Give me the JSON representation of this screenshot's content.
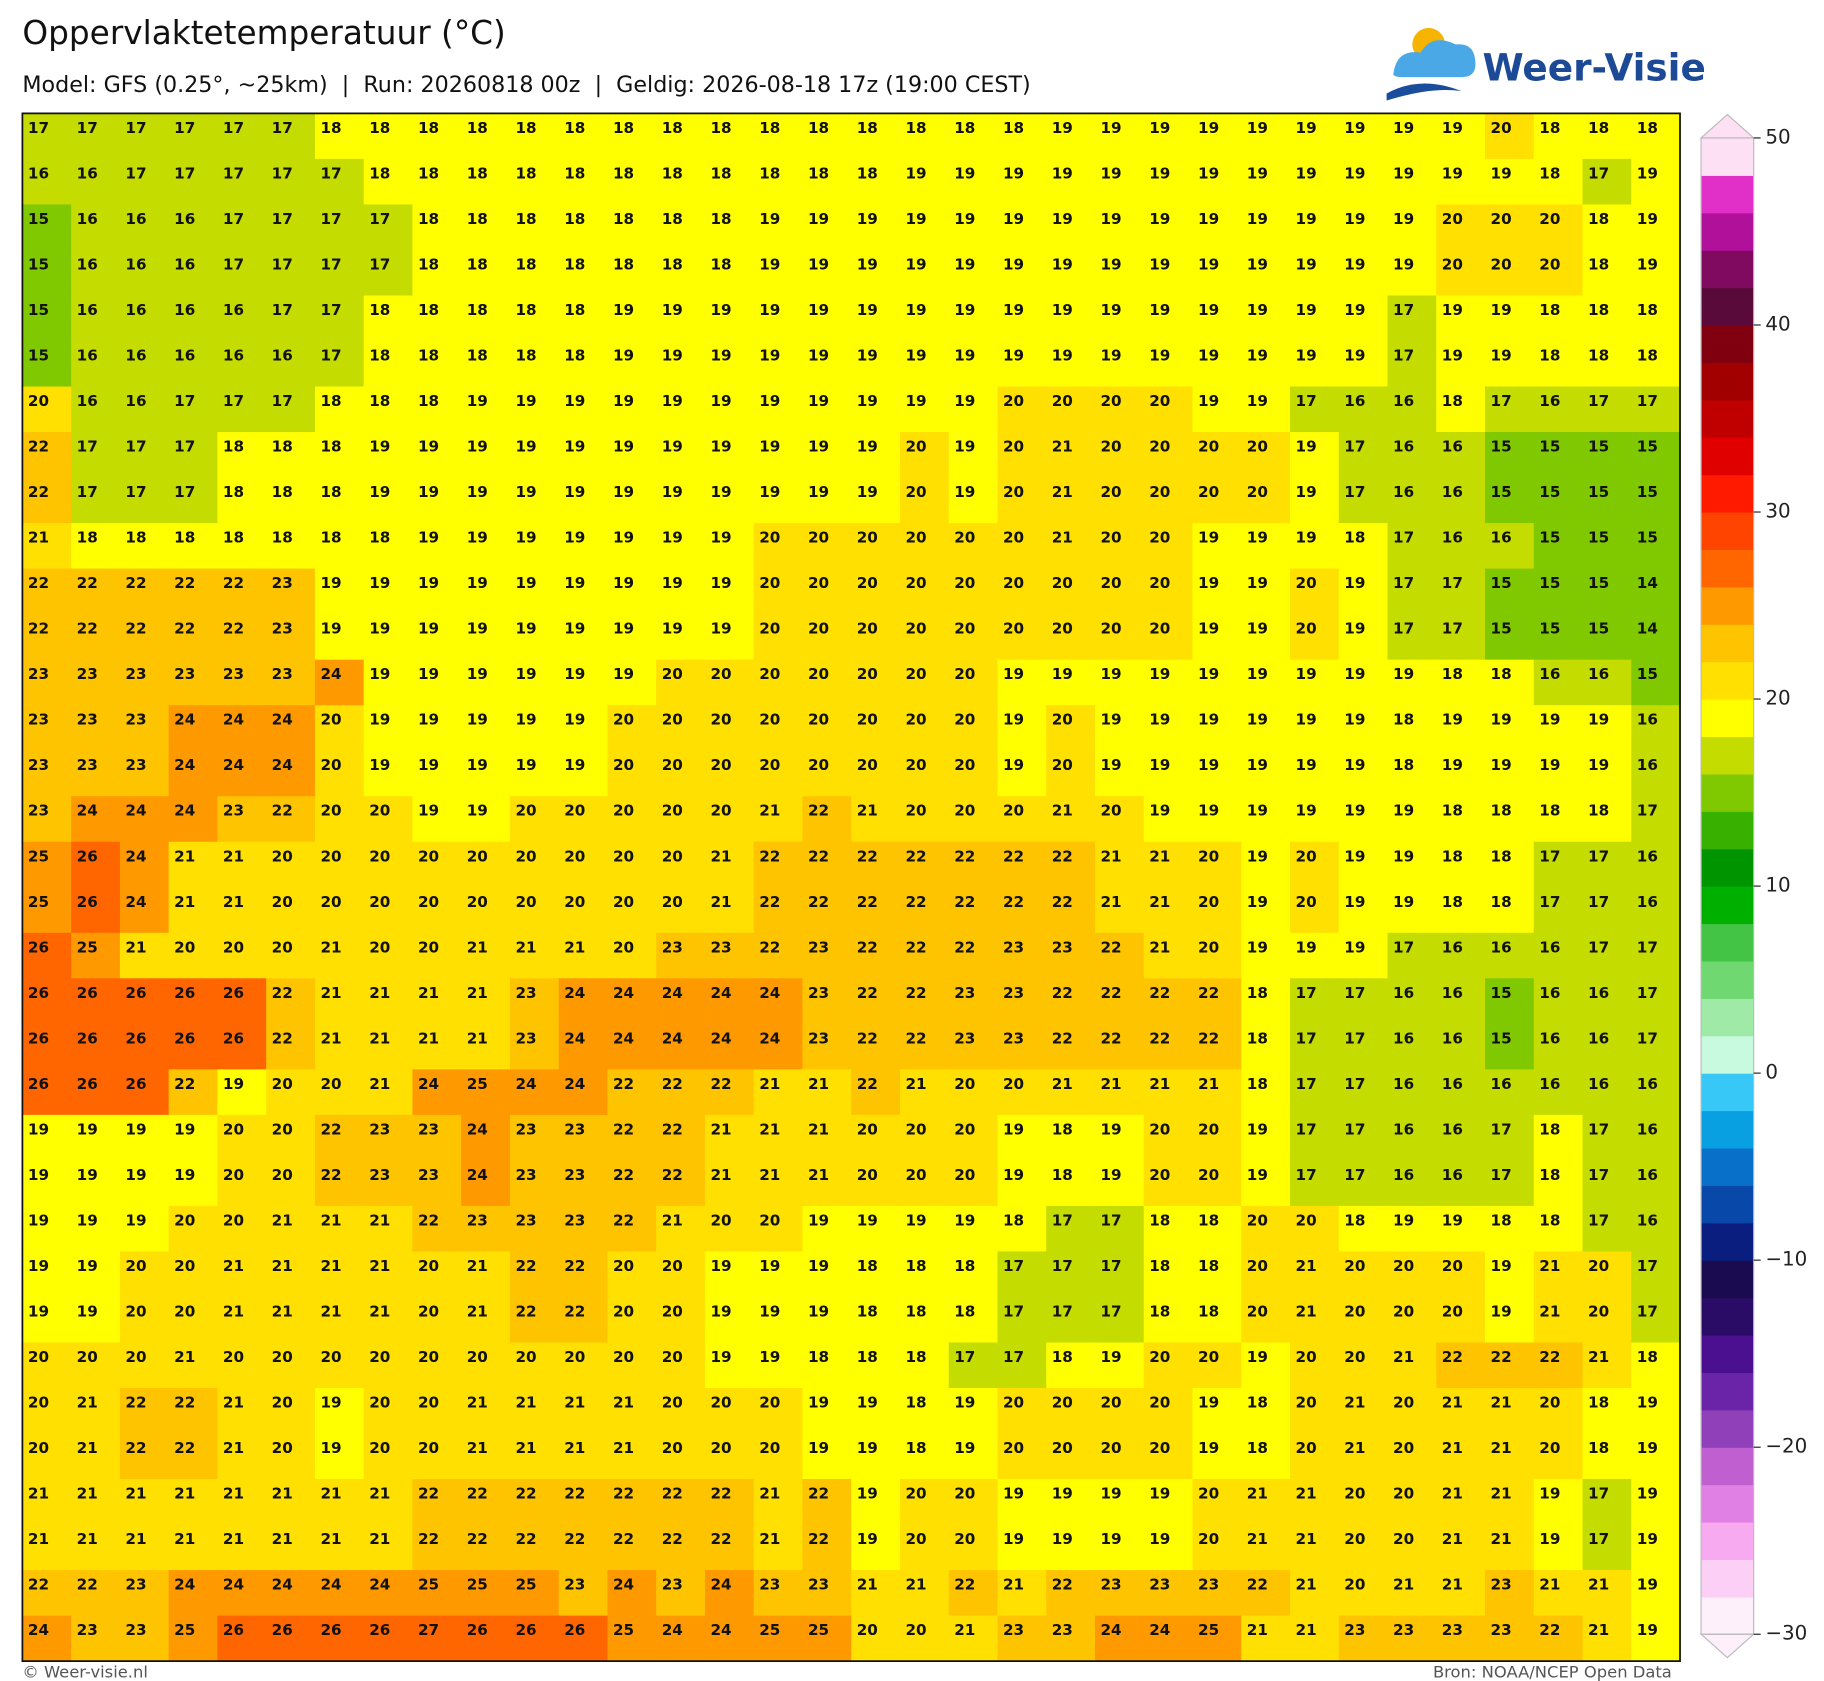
{
  "header": {
    "title": "Oppervlaktetemperatuur (°C)",
    "subtitle": "Model: GFS (0.25°, ~25km)  |  Run: 20260818 00z  |  Geldig: 2026-08-18 17z (19:00 CEST)"
  },
  "logo": "Weer-Visie",
  "grid": {
    "rows": [
      [
        17,
        17,
        17,
        17,
        17,
        17,
        18,
        18,
        18,
        18,
        18,
        18,
        18,
        18,
        18,
        18,
        18,
        18,
        18,
        18,
        18,
        19,
        19,
        19,
        19,
        19,
        19,
        19,
        19,
        19,
        20,
        18,
        18,
        18
      ],
      [
        16,
        16,
        17,
        17,
        17,
        17,
        17,
        18,
        18,
        18,
        18,
        18,
        18,
        18,
        18,
        18,
        18,
        18,
        19,
        19,
        19,
        19,
        19,
        19,
        19,
        19,
        19,
        19,
        19,
        19,
        19,
        18,
        17,
        19
      ],
      [
        15,
        16,
        16,
        16,
        17,
        17,
        17,
        17,
        18,
        18,
        18,
        18,
        18,
        18,
        18,
        19,
        19,
        19,
        19,
        19,
        19,
        19,
        19,
        19,
        19,
        19,
        19,
        19,
        19,
        20,
        20,
        20,
        18,
        19
      ],
      [
        15,
        16,
        16,
        16,
        17,
        17,
        17,
        17,
        18,
        18,
        18,
        18,
        18,
        18,
        18,
        19,
        19,
        19,
        19,
        19,
        19,
        19,
        19,
        19,
        19,
        19,
        19,
        19,
        19,
        20,
        20,
        20,
        18,
        19
      ],
      [
        15,
        16,
        16,
        16,
        16,
        17,
        17,
        18,
        18,
        18,
        18,
        18,
        19,
        19,
        19,
        19,
        19,
        19,
        19,
        19,
        19,
        19,
        19,
        19,
        19,
        19,
        19,
        19,
        17,
        19,
        19,
        18,
        18,
        18
      ],
      [
        15,
        16,
        16,
        16,
        16,
        16,
        17,
        18,
        18,
        18,
        18,
        18,
        19,
        19,
        19,
        19,
        19,
        19,
        19,
        19,
        19,
        19,
        19,
        19,
        19,
        19,
        19,
        19,
        17,
        19,
        19,
        18,
        18,
        18
      ],
      [
        20,
        16,
        16,
        17,
        17,
        17,
        18,
        18,
        18,
        19,
        19,
        19,
        19,
        19,
        19,
        19,
        19,
        19,
        19,
        19,
        20,
        20,
        20,
        20,
        19,
        19,
        17,
        16,
        16,
        18,
        17,
        16,
        17,
        17
      ],
      [
        22,
        17,
        17,
        17,
        18,
        18,
        18,
        19,
        19,
        19,
        19,
        19,
        19,
        19,
        19,
        19,
        19,
        19,
        20,
        19,
        20,
        21,
        20,
        20,
        20,
        20,
        19,
        17,
        16,
        16,
        15,
        15,
        15,
        15
      ],
      [
        22,
        17,
        17,
        17,
        18,
        18,
        18,
        19,
        19,
        19,
        19,
        19,
        19,
        19,
        19,
        19,
        19,
        19,
        20,
        19,
        20,
        21,
        20,
        20,
        20,
        20,
        19,
        17,
        16,
        16,
        15,
        15,
        15,
        15
      ],
      [
        21,
        18,
        18,
        18,
        18,
        18,
        18,
        18,
        19,
        19,
        19,
        19,
        19,
        19,
        19,
        20,
        20,
        20,
        20,
        20,
        20,
        21,
        20,
        20,
        19,
        19,
        19,
        18,
        17,
        16,
        16,
        15,
        15,
        15
      ],
      [
        22,
        22,
        22,
        22,
        22,
        23,
        19,
        19,
        19,
        19,
        19,
        19,
        19,
        19,
        19,
        20,
        20,
        20,
        20,
        20,
        20,
        20,
        20,
        20,
        19,
        19,
        20,
        19,
        17,
        17,
        15,
        15,
        15,
        14
      ],
      [
        22,
        22,
        22,
        22,
        22,
        23,
        19,
        19,
        19,
        19,
        19,
        19,
        19,
        19,
        19,
        20,
        20,
        20,
        20,
        20,
        20,
        20,
        20,
        20,
        19,
        19,
        20,
        19,
        17,
        17,
        15,
        15,
        15,
        14
      ],
      [
        23,
        23,
        23,
        23,
        23,
        23,
        24,
        19,
        19,
        19,
        19,
        19,
        19,
        20,
        20,
        20,
        20,
        20,
        20,
        20,
        19,
        19,
        19,
        19,
        19,
        19,
        19,
        19,
        19,
        18,
        18,
        16,
        16,
        15
      ],
      [
        23,
        23,
        23,
        24,
        24,
        24,
        20,
        19,
        19,
        19,
        19,
        19,
        20,
        20,
        20,
        20,
        20,
        20,
        20,
        20,
        19,
        20,
        19,
        19,
        19,
        19,
        19,
        19,
        18,
        19,
        19,
        19,
        19,
        16
      ],
      [
        23,
        23,
        23,
        24,
        24,
        24,
        20,
        19,
        19,
        19,
        19,
        19,
        20,
        20,
        20,
        20,
        20,
        20,
        20,
        20,
        19,
        20,
        19,
        19,
        19,
        19,
        19,
        19,
        18,
        19,
        19,
        19,
        19,
        16
      ],
      [
        23,
        24,
        24,
        24,
        23,
        22,
        20,
        20,
        19,
        19,
        20,
        20,
        20,
        20,
        20,
        21,
        22,
        21,
        20,
        20,
        20,
        21,
        20,
        19,
        19,
        19,
        19,
        19,
        19,
        18,
        18,
        18,
        18,
        17
      ],
      [
        25,
        26,
        24,
        21,
        21,
        20,
        20,
        20,
        20,
        20,
        20,
        20,
        20,
        20,
        21,
        22,
        22,
        22,
        22,
        22,
        22,
        22,
        21,
        21,
        20,
        19,
        20,
        19,
        19,
        18,
        18,
        17,
        17,
        16
      ],
      [
        25,
        26,
        24,
        21,
        21,
        20,
        20,
        20,
        20,
        20,
        20,
        20,
        20,
        20,
        21,
        22,
        22,
        22,
        22,
        22,
        22,
        22,
        21,
        21,
        20,
        19,
        20,
        19,
        19,
        18,
        18,
        17,
        17,
        16
      ],
      [
        26,
        25,
        21,
        20,
        20,
        20,
        21,
        20,
        20,
        21,
        21,
        21,
        20,
        23,
        23,
        22,
        23,
        22,
        22,
        22,
        23,
        23,
        22,
        21,
        20,
        19,
        19,
        19,
        17,
        16,
        16,
        16,
        17,
        17
      ],
      [
        26,
        26,
        26,
        26,
        26,
        22,
        21,
        21,
        21,
        21,
        23,
        24,
        24,
        24,
        24,
        24,
        23,
        22,
        22,
        23,
        23,
        22,
        22,
        22,
        22,
        18,
        17,
        17,
        16,
        16,
        15,
        16,
        16,
        17
      ],
      [
        26,
        26,
        26,
        26,
        26,
        22,
        21,
        21,
        21,
        21,
        23,
        24,
        24,
        24,
        24,
        24,
        23,
        22,
        22,
        23,
        23,
        22,
        22,
        22,
        22,
        18,
        17,
        17,
        16,
        16,
        15,
        16,
        16,
        17
      ],
      [
        26,
        26,
        26,
        22,
        19,
        20,
        20,
        21,
        24,
        25,
        24,
        24,
        22,
        22,
        22,
        21,
        21,
        22,
        21,
        20,
        20,
        21,
        21,
        21,
        21,
        18,
        17,
        17,
        16,
        16,
        16,
        16,
        16,
        16
      ],
      [
        19,
        19,
        19,
        19,
        20,
        20,
        22,
        23,
        23,
        24,
        23,
        23,
        22,
        22,
        21,
        21,
        21,
        20,
        20,
        20,
        19,
        18,
        19,
        20,
        20,
        19,
        17,
        17,
        16,
        16,
        17,
        18,
        17,
        16
      ],
      [
        19,
        19,
        19,
        19,
        20,
        20,
        22,
        23,
        23,
        24,
        23,
        23,
        22,
        22,
        21,
        21,
        21,
        20,
        20,
        20,
        19,
        18,
        19,
        20,
        20,
        19,
        17,
        17,
        16,
        16,
        17,
        18,
        17,
        16
      ],
      [
        19,
        19,
        19,
        20,
        20,
        21,
        21,
        21,
        22,
        23,
        23,
        23,
        22,
        21,
        20,
        20,
        19,
        19,
        19,
        19,
        18,
        17,
        17,
        18,
        18,
        20,
        20,
        18,
        19,
        19,
        18,
        18,
        17,
        16
      ],
      [
        19,
        19,
        20,
        20,
        21,
        21,
        21,
        21,
        20,
        21,
        22,
        22,
        20,
        20,
        19,
        19,
        19,
        18,
        18,
        18,
        17,
        17,
        17,
        18,
        18,
        20,
        21,
        20,
        20,
        20,
        19,
        21,
        20,
        17
      ],
      [
        19,
        19,
        20,
        20,
        21,
        21,
        21,
        21,
        20,
        21,
        22,
        22,
        20,
        20,
        19,
        19,
        19,
        18,
        18,
        18,
        17,
        17,
        17,
        18,
        18,
        20,
        21,
        20,
        20,
        20,
        19,
        21,
        20,
        17
      ],
      [
        20,
        20,
        20,
        21,
        20,
        20,
        20,
        20,
        20,
        20,
        20,
        20,
        20,
        20,
        19,
        19,
        18,
        18,
        18,
        17,
        17,
        18,
        19,
        20,
        20,
        19,
        20,
        20,
        21,
        22,
        22,
        22,
        21,
        18
      ],
      [
        20,
        21,
        22,
        22,
        21,
        20,
        19,
        20,
        20,
        21,
        21,
        21,
        21,
        20,
        20,
        20,
        19,
        19,
        18,
        19,
        20,
        20,
        20,
        20,
        19,
        18,
        20,
        21,
        20,
        21,
        21,
        20,
        18,
        19
      ],
      [
        20,
        21,
        22,
        22,
        21,
        20,
        19,
        20,
        20,
        21,
        21,
        21,
        21,
        20,
        20,
        20,
        19,
        19,
        18,
        19,
        20,
        20,
        20,
        20,
        19,
        18,
        20,
        21,
        20,
        21,
        21,
        20,
        18,
        19
      ],
      [
        21,
        21,
        21,
        21,
        21,
        21,
        21,
        21,
        22,
        22,
        22,
        22,
        22,
        22,
        22,
        21,
        22,
        19,
        20,
        20,
        19,
        19,
        19,
        19,
        20,
        21,
        21,
        20,
        20,
        21,
        21,
        19,
        17,
        19
      ],
      [
        21,
        21,
        21,
        21,
        21,
        21,
        21,
        21,
        22,
        22,
        22,
        22,
        22,
        22,
        22,
        21,
        22,
        19,
        20,
        20,
        19,
        19,
        19,
        19,
        20,
        21,
        21,
        20,
        20,
        21,
        21,
        19,
        17,
        19
      ],
      [
        22,
        22,
        23,
        24,
        24,
        24,
        24,
        24,
        25,
        25,
        25,
        23,
        24,
        23,
        24,
        23,
        23,
        21,
        21,
        22,
        21,
        22,
        23,
        23,
        23,
        22,
        21,
        20,
        21,
        21,
        23,
        21,
        21,
        19
      ],
      [
        24,
        23,
        23,
        25,
        26,
        26,
        26,
        26,
        27,
        26,
        26,
        26,
        25,
        24,
        24,
        25,
        25,
        20,
        20,
        21,
        23,
        23,
        24,
        24,
        25,
        21,
        21,
        23,
        23,
        23,
        23,
        22,
        21,
        19
      ]
    ]
  },
  "colorbar": {
    "clim": [
      -30,
      50
    ],
    "ticks": [
      {
        "value": -30,
        "label": "−30"
      },
      {
        "value": -20,
        "label": "−20"
      },
      {
        "value": -10,
        "label": "−10"
      },
      0,
      10,
      20,
      30,
      40,
      50
    ],
    "colors": [
      "#fdf0fb",
      "#fcd0f6",
      "#f8aaf0",
      "#e080e4",
      "#c060d0",
      "#9040b8",
      "#6a24a8",
      "#4a1090",
      "#2a0c66",
      "#1a0a50",
      "#0a1e80",
      "#0848a8",
      "#0870c8",
      "#08a0e0",
      "#38c8f8",
      "#c8fae0",
      "#a0eaa8",
      "#70d870",
      "#44c444",
      "#00b000",
      "#009400",
      "#38b000",
      "#80c800",
      "#c4dc00",
      "#ffff00",
      "#ffe000",
      "#ffc400",
      "#ff9900",
      "#ff6600",
      "#ff4400",
      "#ff1a00",
      "#e00000",
      "#c00000",
      "#a00000",
      "#800010",
      "#5a0a3a",
      "#800a60",
      "#b0109a",
      "#e030c8",
      "#fde0f4"
    ]
  },
  "footer": {
    "left": "© Weer-visie.nl",
    "right": "Bron: NOAA/NCEP Open Data"
  }
}
